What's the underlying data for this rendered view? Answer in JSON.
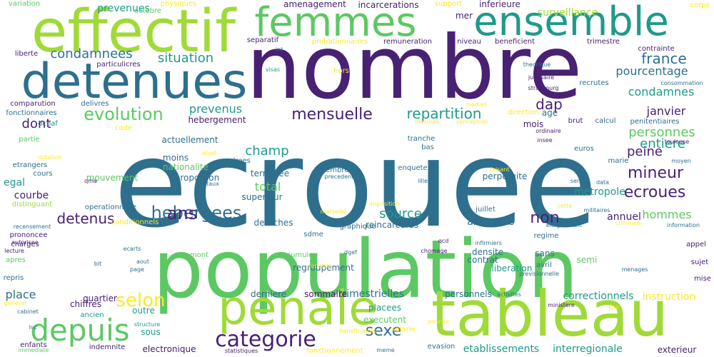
{
  "palette": {
    "dark_purple": "#482173",
    "blue": "#2e6f8e",
    "teal": "#1f9a8a",
    "green": "#5cc863",
    "lime": "#a0da39",
    "yellow": "#fde725"
  },
  "words": [
    {
      "text": "ecrouee",
      "color": "blue"
    },
    {
      "text": "population",
      "color": "green"
    },
    {
      "text": "nombre",
      "color": "dark_purple"
    },
    {
      "text": "tableau",
      "color": "lime"
    },
    {
      "text": "effectif",
      "color": "lime"
    },
    {
      "text": "detenues",
      "color": "blue"
    },
    {
      "text": "penale",
      "color": "lime"
    },
    {
      "text": "femmes",
      "color": "green"
    },
    {
      "text": "ensemble",
      "color": "teal"
    },
    {
      "text": "depuis",
      "color": "green"
    },
    {
      "text": "categorie",
      "color": "dark_purple"
    },
    {
      "text": "hebergees",
      "color": "blue"
    },
    {
      "text": "evolution",
      "color": "green"
    },
    {
      "text": "selon",
      "color": "yellow"
    },
    {
      "text": "detenus",
      "color": "dark_purple"
    },
    {
      "text": "ans",
      "color": "dark_purple"
    },
    {
      "text": "sexe",
      "color": "blue"
    },
    {
      "text": "mensuelle",
      "color": "dark_purple"
    },
    {
      "text": "repartition",
      "color": "teal"
    },
    {
      "text": "situation",
      "color": "teal"
    },
    {
      "text": "condamnees",
      "color": "blue"
    },
    {
      "text": "dap",
      "color": "dark_purple"
    },
    {
      "text": "france",
      "color": "blue"
    },
    {
      "text": "pourcentage",
      "color": "blue"
    },
    {
      "text": "condamnes",
      "color": "teal"
    },
    {
      "text": "janvier",
      "color": "dark_purple"
    },
    {
      "text": "personnes",
      "color": "green"
    },
    {
      "text": "entiere",
      "color": "teal"
    },
    {
      "text": "ecroues",
      "color": "dark_purple"
    },
    {
      "text": "hommes",
      "color": "green"
    },
    {
      "text": "mineur",
      "color": "dark_purple"
    },
    {
      "text": "peine",
      "color": "dark_purple"
    },
    {
      "text": "source",
      "color": "teal"
    },
    {
      "text": "non",
      "color": "dark_purple"
    },
    {
      "text": "champ",
      "color": "teal"
    },
    {
      "text": "total",
      "color": "green"
    },
    {
      "text": "prevenus",
      "color": "teal"
    },
    {
      "text": "prevenues",
      "color": "teal"
    },
    {
      "text": "dont",
      "color": "dark_purple"
    },
    {
      "text": "incarcerations",
      "color": "dark_purple"
    },
    {
      "text": "inferieure",
      "color": "dark_purple"
    },
    {
      "text": "surveillance",
      "color": "lime"
    },
    {
      "text": "place",
      "color": "blue"
    },
    {
      "text": "courbe",
      "color": "dark_purple"
    },
    {
      "text": "egal",
      "color": "teal"
    },
    {
      "text": "etablissements",
      "color": "teal"
    },
    {
      "text": "trimestrielles",
      "color": "blue"
    },
    {
      "text": "interregionale",
      "color": "teal"
    },
    {
      "text": "correctionnels",
      "color": "teal"
    },
    {
      "text": "instruction",
      "color": "yellow"
    },
    {
      "text": "electronique",
      "color": "dark_purple"
    },
    {
      "text": "sous",
      "color": "teal"
    },
    {
      "text": "outre",
      "color": "teal"
    },
    {
      "text": "quartier",
      "color": "dark_purple"
    },
    {
      "text": "chiffres",
      "color": "dark_purple"
    },
    {
      "text": "metropole",
      "color": "teal"
    },
    {
      "text": "perpetuite",
      "color": "blue"
    },
    {
      "text": "annuel",
      "color": "dark_purple"
    },
    {
      "text": "liberation",
      "color": "teal"
    },
    {
      "text": "plus",
      "color": "blue"
    },
    {
      "text": "annee",
      "color": "blue"
    },
    {
      "text": "densite",
      "color": "blue"
    },
    {
      "text": "contrat",
      "color": "blue"
    },
    {
      "text": "age",
      "color": "blue"
    },
    {
      "text": "mois",
      "color": "dark_purple"
    },
    {
      "text": "moins",
      "color": "blue"
    },
    {
      "text": "actuellement",
      "color": "blue"
    },
    {
      "text": "hebergement",
      "color": "dark_purple"
    },
    {
      "text": "nationalite",
      "color": "green"
    },
    {
      "text": "proportion",
      "color": "blue"
    },
    {
      "text": "mouvement",
      "color": "green"
    },
    {
      "text": "terminee",
      "color": "blue"
    },
    {
      "text": "superieur",
      "color": "blue"
    },
    {
      "text": "membres",
      "color": "blue"
    },
    {
      "text": "operationnelle",
      "color": "blue"
    },
    {
      "text": "personnels",
      "color": "blue"
    },
    {
      "text": "derniere",
      "color": "blue"
    },
    {
      "text": "sommaire",
      "color": "dark_purple"
    },
    {
      "text": "placees",
      "color": "teal"
    },
    {
      "text": "executent",
      "color": "green"
    },
    {
      "text": "reincarceres",
      "color": "blue"
    },
    {
      "text": "regroupement",
      "color": "blue"
    },
    {
      "text": "detaches",
      "color": "blue"
    },
    {
      "text": "juillet",
      "color": "blue"
    },
    {
      "text": "sans",
      "color": "blue"
    },
    {
      "text": "semi",
      "color": "green"
    },
    {
      "text": "regime",
      "color": "blue"
    },
    {
      "text": "appel",
      "color": "dark_purple"
    },
    {
      "text": "sujet",
      "color": "dark_purple"
    },
    {
      "text": "mise",
      "color": "dark_purple"
    },
    {
      "text": "exterieur",
      "color": "dark_purple"
    },
    {
      "text": "mer",
      "color": "dark_purple"
    },
    {
      "text": "niveau",
      "color": "dark_purple"
    },
    {
      "text": "beneficient",
      "color": "dark_purple"
    },
    {
      "text": "trimestre",
      "color": "dark_purple"
    },
    {
      "text": "contrainte",
      "color": "dark_purple"
    },
    {
      "text": "corps",
      "color": "yellow"
    },
    {
      "text": "support",
      "color": "yellow"
    },
    {
      "text": "amenagement",
      "color": "dark_purple"
    },
    {
      "text": "physiques",
      "color": "yellow"
    },
    {
      "text": "octobre",
      "color": "green"
    },
    {
      "text": "variation",
      "color": "green"
    },
    {
      "text": "liberte",
      "color": "dark_purple"
    },
    {
      "text": "particulicres",
      "color": "dark_purple"
    },
    {
      "text": "separatif",
      "color": "dark_purple"
    },
    {
      "text": "probationnaires",
      "color": "yellow"
    },
    {
      "text": "remuneration",
      "color": "dark_purple"
    },
    {
      "text": "int",
      "color": "blue"
    },
    {
      "text": "visas",
      "color": "teal"
    },
    {
      "text": "hors",
      "color": "yellow"
    },
    {
      "text": "theorique",
      "color": "blue"
    },
    {
      "text": "judiciaire",
      "color": "dark_purple"
    },
    {
      "text": "strasbourg",
      "color": "dark_purple"
    },
    {
      "text": "recrutes",
      "color": "blue"
    },
    {
      "text": "consommation",
      "color": "blue"
    },
    {
      "text": "penitentiaires",
      "color": "blue"
    },
    {
      "text": "brut",
      "color": "dark_purple"
    },
    {
      "text": "calcul",
      "color": "blue"
    },
    {
      "text": "ordinaire",
      "color": "dark_purple"
    },
    {
      "text": "toulouse",
      "color": "dark_purple"
    },
    {
      "text": "insee",
      "color": "dark_purple"
    },
    {
      "text": "euros",
      "color": "blue"
    },
    {
      "text": "marie",
      "color": "blue"
    },
    {
      "text": "moyen",
      "color": "blue"
    },
    {
      "text": "direction",
      "color": "yellow"
    },
    {
      "text": "median",
      "color": "yellow"
    },
    {
      "text": "conception",
      "color": "yellow"
    },
    {
      "text": "mesures",
      "color": "yellow"
    },
    {
      "text": "comparution",
      "color": "dark_purple"
    },
    {
      "text": "delivres",
      "color": "blue"
    },
    {
      "text": "fonctionnaires",
      "color": "blue"
    },
    {
      "text": "dcpaf",
      "color": "teal"
    },
    {
      "text": "code",
      "color": "yellow"
    },
    {
      "text": "partie",
      "color": "green"
    },
    {
      "text": "dotation",
      "color": "yellow"
    },
    {
      "text": "objet",
      "color": "yellow"
    },
    {
      "text": "cours",
      "color": "blue"
    },
    {
      "text": "etrangers",
      "color": "blue"
    },
    {
      "text": "drees",
      "color": "blue"
    },
    {
      "text": "precedent",
      "color": "blue"
    },
    {
      "text": "tranche",
      "color": "blue"
    },
    {
      "text": "bas",
      "color": "blue"
    },
    {
      "text": "faisant",
      "color": "yellow"
    },
    {
      "text": "enquete",
      "color": "blue"
    },
    {
      "text": "lille",
      "color": "blue"
    },
    {
      "text": "sens",
      "color": "blue"
    },
    {
      "text": "data",
      "color": "blue"
    },
    {
      "text": "qma",
      "color": "dark_purple"
    },
    {
      "text": "taux",
      "color": "blue"
    },
    {
      "text": "distinguant",
      "color": "lime"
    },
    {
      "text": "disposition",
      "color": "yellow"
    },
    {
      "text": "marseille",
      "color": "yellow"
    },
    {
      "text": "cette",
      "color": "yellow"
    },
    {
      "text": "militaires",
      "color": "blue"
    },
    {
      "text": "eloignement",
      "color": "blue"
    },
    {
      "text": "criminels",
      "color": "yellow"
    },
    {
      "text": "information",
      "color": "blue"
    },
    {
      "text": "conditionnels",
      "color": "yellow"
    },
    {
      "text": "prononcee",
      "color": "dark_purple"
    },
    {
      "text": "recensement",
      "color": "blue"
    },
    {
      "text": "charges",
      "color": "dark_purple"
    },
    {
      "text": "autorisee",
      "color": "dark_purple"
    },
    {
      "text": "lecture",
      "color": "dark_purple"
    },
    {
      "text": "apres",
      "color": "green"
    },
    {
      "text": "repris",
      "color": "blue"
    },
    {
      "text": "graphique",
      "color": "blue"
    },
    {
      "text": "sdme",
      "color": "blue"
    },
    {
      "text": "qcd",
      "color": "dark_purple"
    },
    {
      "text": "infirmiers",
      "color": "blue"
    },
    {
      "text": "dgef",
      "color": "blue"
    },
    {
      "text": "chomage",
      "color": "dark_purple"
    },
    {
      "text": "ecarts",
      "color": "blue"
    },
    {
      "text": "mont",
      "color": "green"
    },
    {
      "text": "cumule",
      "color": "green"
    },
    {
      "text": "aout",
      "color": "blue"
    },
    {
      "text": "page",
      "color": "blue"
    },
    {
      "text": "capacite",
      "color": "yellow"
    },
    {
      "text": "avril",
      "color": "blue"
    },
    {
      "text": "previsionnelle",
      "color": "blue"
    },
    {
      "text": "menages",
      "color": "blue"
    },
    {
      "text": "bit",
      "color": "blue"
    },
    {
      "text": "general",
      "color": "yellow"
    },
    {
      "text": "cabinet",
      "color": "blue"
    },
    {
      "text": "ancien",
      "color": "teal"
    },
    {
      "text": "structure",
      "color": "teal"
    },
    {
      "text": "activites",
      "color": "blue"
    },
    {
      "text": "ministere",
      "color": "dark_purple"
    },
    {
      "text": "jour",
      "color": "yellow"
    },
    {
      "text": "lsc",
      "color": "blue"
    },
    {
      "text": "enfants",
      "color": "dark_purple"
    },
    {
      "text": "immediate",
      "color": "green"
    },
    {
      "text": "indemnite",
      "color": "dark_purple"
    },
    {
      "text": "statistiques",
      "color": "dark_purple"
    },
    {
      "text": "fonctionnement",
      "color": "yellow"
    },
    {
      "text": "beneficiaires",
      "color": "yellow"
    },
    {
      "text": "meme",
      "color": "blue"
    },
    {
      "text": "salarie",
      "color": "yellow"
    },
    {
      "text": "evasion",
      "color": "blue"
    },
    {
      "text": "pourvoi",
      "color": "yellow"
    },
    {
      "text": "actif",
      "color": "blue"
    }
  ]
}
